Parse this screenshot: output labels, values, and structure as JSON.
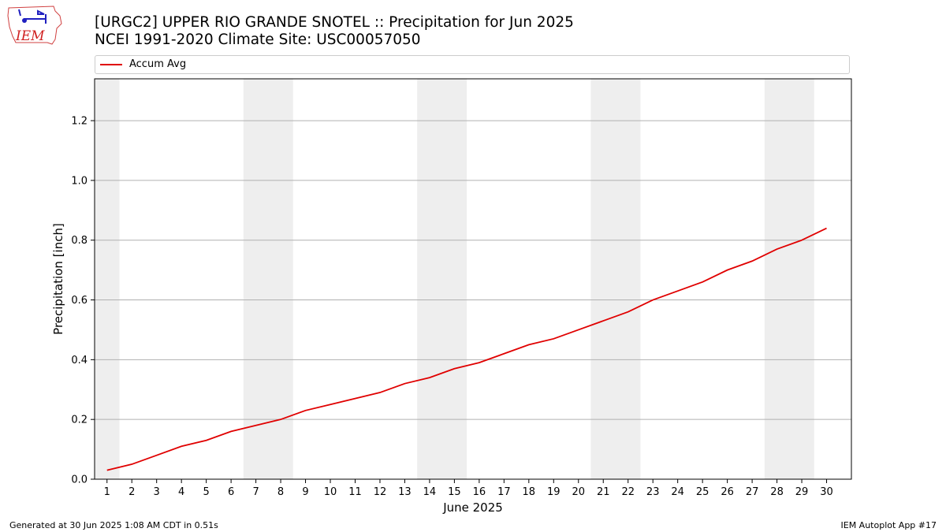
{
  "logo": {
    "text": "IEM"
  },
  "header": {
    "title": "[URGC2] UPPER RIO GRANDE SNOTEL :: Precipitation for Jun 2025",
    "subtitle": "NCEI 1991-2020 Climate Site: USC00057050"
  },
  "footer": {
    "generated": "Generated at 30 Jun 2025 1:08 AM CDT in 0.51s",
    "app": "IEM Autoplot App #17"
  },
  "colors": {
    "series": "#e00000",
    "weekend_band": "#eeeeee",
    "grid": "#b0b0b0"
  },
  "chart_data": {
    "type": "line",
    "title": "[URGC2] UPPER RIO GRANDE SNOTEL :: Precipitation for Jun 2025",
    "subtitle": "NCEI 1991-2020 Climate Site: USC00057050",
    "xlabel": "June 2025",
    "ylabel": "Precipitation [inch]",
    "xlim": [
      0.5,
      31
    ],
    "ylim": [
      0,
      1.34
    ],
    "y_ticks": [
      0.0,
      0.2,
      0.4,
      0.6,
      0.8,
      1.0,
      1.2
    ],
    "y_tick_labels": [
      "0.0",
      "0.2",
      "0.4",
      "0.6",
      "0.8",
      "1.0",
      "1.2"
    ],
    "x": [
      1,
      2,
      3,
      4,
      5,
      6,
      7,
      8,
      9,
      10,
      11,
      12,
      13,
      14,
      15,
      16,
      17,
      18,
      19,
      20,
      21,
      22,
      23,
      24,
      25,
      26,
      27,
      28,
      29,
      30
    ],
    "x_tick_labels": [
      "1",
      "2",
      "3",
      "4",
      "5",
      "6",
      "7",
      "8",
      "9",
      "10",
      "11",
      "12",
      "13",
      "14",
      "15",
      "16",
      "17",
      "18",
      "19",
      "20",
      "21",
      "22",
      "23",
      "24",
      "25",
      "26",
      "27",
      "28",
      "29",
      "30"
    ],
    "weekend_bands": [
      [
        0.5,
        1.5
      ],
      [
        6.5,
        8.5
      ],
      [
        13.5,
        15.5
      ],
      [
        20.5,
        22.5
      ],
      [
        27.5,
        29.5
      ]
    ],
    "grid": "horizontal",
    "legend_placement": "top",
    "series": [
      {
        "name": "Accum Avg",
        "values": [
          0.03,
          0.05,
          0.08,
          0.11,
          0.13,
          0.16,
          0.18,
          0.2,
          0.23,
          0.25,
          0.27,
          0.29,
          0.32,
          0.34,
          0.37,
          0.39,
          0.42,
          0.45,
          0.47,
          0.5,
          0.53,
          0.56,
          0.6,
          0.63,
          0.66,
          0.7,
          0.73,
          0.77,
          0.8,
          0.84
        ]
      }
    ]
  }
}
